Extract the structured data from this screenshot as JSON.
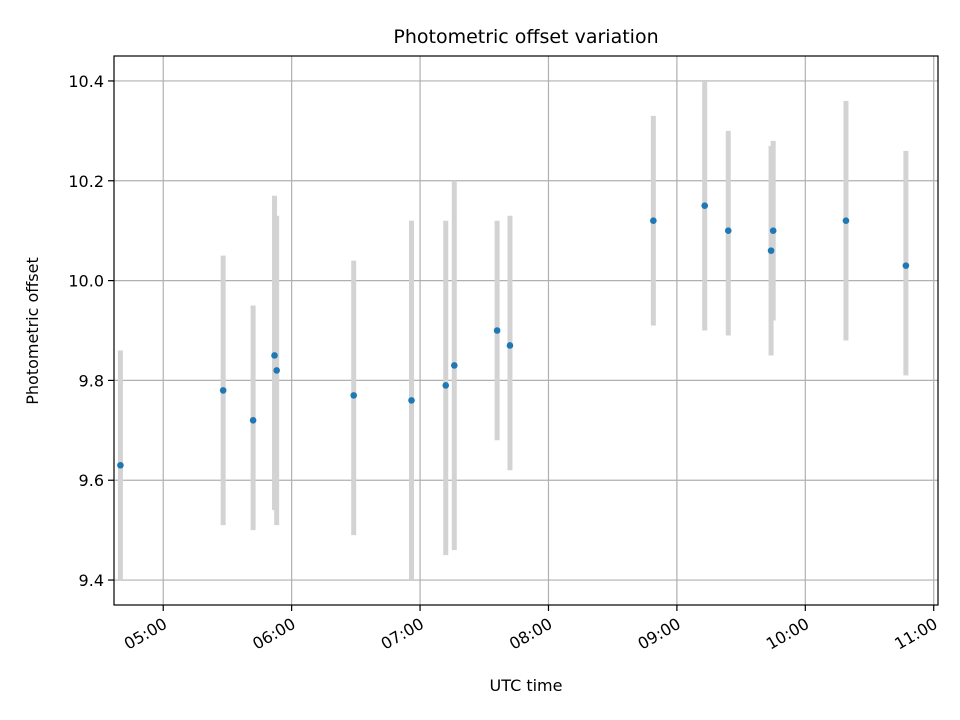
{
  "chart_data": {
    "type": "scatter",
    "title": "Photometric offset variation",
    "xlabel": "UTC time",
    "ylabel": "Photometric offset",
    "x_ticks": [
      "05:00",
      "06:00",
      "07:00",
      "08:00",
      "09:00",
      "10:00",
      "11:00"
    ],
    "y_ticks": [
      "9.4",
      "9.6",
      "9.8",
      "10.0",
      "10.2",
      "10.4"
    ],
    "xlim": [
      "04:37",
      "11:02"
    ],
    "ylim": [
      9.35,
      10.45
    ],
    "grid": true,
    "marker_color": "#1f77b4",
    "errorbar_color": "#d3d3d3",
    "points": [
      {
        "x": "04:40",
        "y": 9.63,
        "ylow": 9.4,
        "yhigh": 9.86
      },
      {
        "x": "05:28",
        "y": 9.78,
        "ylow": 9.51,
        "yhigh": 10.05
      },
      {
        "x": "05:42",
        "y": 9.72,
        "ylow": 9.5,
        "yhigh": 9.95
      },
      {
        "x": "05:52",
        "y": 9.85,
        "ylow": 9.54,
        "yhigh": 10.17
      },
      {
        "x": "05:53",
        "y": 9.82,
        "ylow": 9.51,
        "yhigh": 10.13
      },
      {
        "x": "06:29",
        "y": 9.77,
        "ylow": 9.49,
        "yhigh": 10.04
      },
      {
        "x": "06:56",
        "y": 9.76,
        "ylow": 9.4,
        "yhigh": 10.12
      },
      {
        "x": "07:12",
        "y": 9.79,
        "ylow": 9.45,
        "yhigh": 10.12
      },
      {
        "x": "07:16",
        "y": 9.83,
        "ylow": 9.46,
        "yhigh": 10.2
      },
      {
        "x": "07:36",
        "y": 9.9,
        "ylow": 9.68,
        "yhigh": 10.12
      },
      {
        "x": "07:42",
        "y": 9.87,
        "ylow": 9.62,
        "yhigh": 10.13
      },
      {
        "x": "08:49",
        "y": 10.12,
        "ylow": 9.91,
        "yhigh": 10.33
      },
      {
        "x": "09:13",
        "y": 10.15,
        "ylow": 9.9,
        "yhigh": 10.4
      },
      {
        "x": "09:24",
        "y": 10.1,
        "ylow": 9.89,
        "yhigh": 10.3
      },
      {
        "x": "09:44",
        "y": 10.06,
        "ylow": 9.85,
        "yhigh": 10.27
      },
      {
        "x": "09:45",
        "y": 10.1,
        "ylow": 9.92,
        "yhigh": 10.28
      },
      {
        "x": "10:19",
        "y": 10.12,
        "ylow": 9.88,
        "yhigh": 10.36
      },
      {
        "x": "10:47",
        "y": 10.03,
        "ylow": 9.81,
        "yhigh": 10.26
      }
    ]
  }
}
